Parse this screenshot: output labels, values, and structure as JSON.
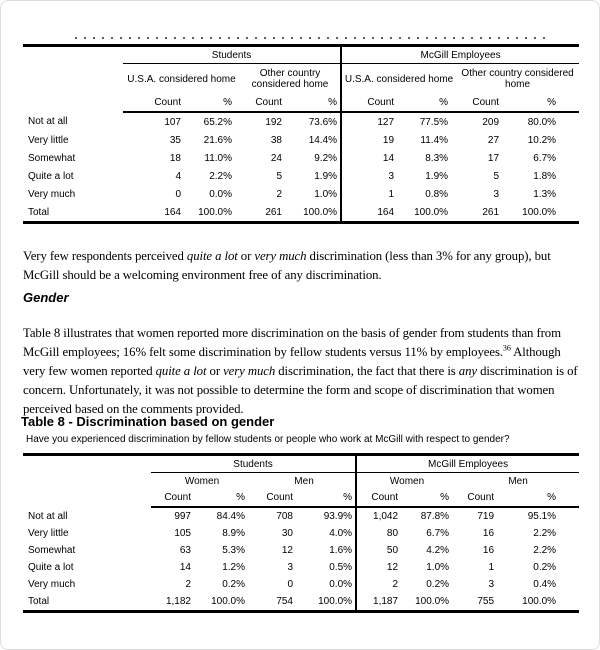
{
  "colors": {
    "text": "#000000",
    "rules": "#000000",
    "page_border": "#dddddd"
  },
  "artifacts": {
    "top_text_line_clipped": true
  },
  "upper_table": {
    "group_headers": [
      "Students",
      "McGill Employees"
    ],
    "subgroup_headers": [
      "U.S.A. considered home",
      "Other country considered home",
      "U.S.A. considered home",
      "Other country considered home"
    ],
    "col_headers": [
      "Count",
      "%",
      "Count",
      "%",
      "Count",
      "%",
      "Count",
      "%"
    ],
    "rows": [
      {
        "label": "Not at all",
        "values": [
          "107",
          "65.2%",
          "192",
          "73.6%",
          "127",
          "77.5%",
          "209",
          "80.0%"
        ]
      },
      {
        "label": "Very little",
        "values": [
          "35",
          "21.6%",
          "38",
          "14.4%",
          "19",
          "11.4%",
          "27",
          "10.2%"
        ]
      },
      {
        "label": "Somewhat",
        "values": [
          "18",
          "11.0%",
          "24",
          "9.2%",
          "14",
          "8.3%",
          "17",
          "6.7%"
        ]
      },
      {
        "label": "Quite a lot",
        "values": [
          "4",
          "2.2%",
          "5",
          "1.9%",
          "3",
          "1.9%",
          "5",
          "1.8%"
        ]
      },
      {
        "label": "Very much",
        "values": [
          "0",
          "0.0%",
          "2",
          "1.0%",
          "1",
          "0.8%",
          "3",
          "1.3%"
        ]
      },
      {
        "label": "Total",
        "values": [
          "164",
          "100.0%",
          "261",
          "100.0%",
          "164",
          "100.0%",
          "261",
          "100.0%"
        ]
      }
    ]
  },
  "para1": {
    "s1": "Very few respondents perceived ",
    "i1": "quite a lot",
    "s2": " or ",
    "i2": "very much",
    "s3": " discrimination (less than 3% for any group), but McGill should be a welcoming environment free of any discrimination."
  },
  "gender_section": {
    "heading": "Gender",
    "para2": {
      "s1": "Table 8 illustrates that women reported more discrimination on the basis of gender from students than from McGill employees; 16% felt some discrimination by fellow students versus 11% by employees.",
      "footnote": "36",
      "s2": " Although very few women reported ",
      "i1": "quite a lot",
      "s3": " or ",
      "i2": "very much",
      "s4": " discrimination, the fact that there is ",
      "i3": "any",
      "s5": " discrimination is of concern. Unfortunately, it was not possible to determine the form and scope of discrimination that women perceived based on the comments provided."
    }
  },
  "table8": {
    "title": "Table 8 - Discrimination based on gender",
    "subtitle": "Have you experienced discrimination by fellow students or people who work at McGill with respect to gender?",
    "group_headers": [
      "Students",
      "McGill Employees"
    ],
    "subgroup_headers": [
      "Women",
      "Men",
      "Women",
      "Men"
    ],
    "col_headers": [
      "Count",
      "%",
      "Count",
      "%",
      "Count",
      "%",
      "Count",
      "%"
    ],
    "rows": [
      {
        "label": "Not at all",
        "values": [
          "997",
          "84.4%",
          "708",
          "93.9%",
          "1,042",
          "87.8%",
          "719",
          "95.1%"
        ]
      },
      {
        "label": "Very little",
        "values": [
          "105",
          "8.9%",
          "30",
          "4.0%",
          "80",
          "6.7%",
          "16",
          "2.2%"
        ]
      },
      {
        "label": "Somewhat",
        "values": [
          "63",
          "5.3%",
          "12",
          "1.6%",
          "50",
          "4.2%",
          "16",
          "2.2%"
        ]
      },
      {
        "label": "Quite a lot",
        "values": [
          "14",
          "1.2%",
          "3",
          "0.5%",
          "12",
          "1.0%",
          "1",
          "0.2%"
        ]
      },
      {
        "label": "Very much",
        "values": [
          "2",
          "0.2%",
          "0",
          "0.0%",
          "2",
          "0.2%",
          "3",
          "0.4%"
        ]
      },
      {
        "label": "Total",
        "values": [
          "1,182",
          "100.0%",
          "754",
          "100.0%",
          "1,187",
          "100.0%",
          "755",
          "100.0%"
        ]
      }
    ]
  }
}
